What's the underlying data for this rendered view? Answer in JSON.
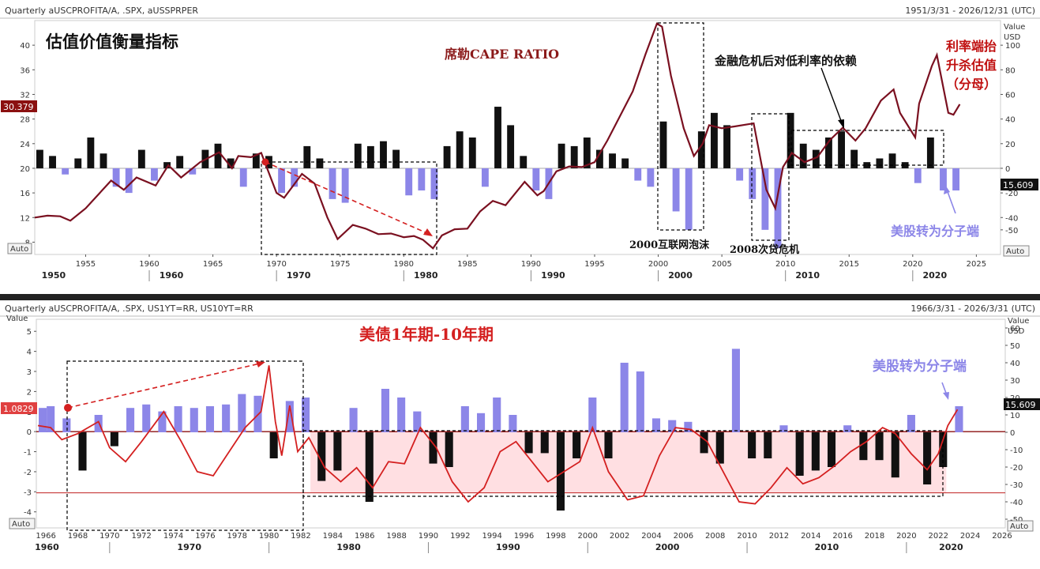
{
  "top_panel": {
    "header_left": "Quarterly aUSCPROFITA/A, .SPX, aUSSPRPER",
    "header_right": "1951/3/31 - 2026/12/31 (UTC)",
    "title": "估值价值衡量指标",
    "cape_label": "席勒CAPE RATIO",
    "annotation_crisis": "金融危机后对低利率的依赖",
    "annotation_rate1": "利率端抬",
    "annotation_rate2": "升杀估值",
    "annotation_rate3": "（分母）",
    "annotation_dotcom": "2000互联网泡沫",
    "annotation_subprime": "2008次贷危机",
    "annotation_numer": "美股转为分子端",
    "right_axis_label1": "Value",
    "right_axis_label2": "USD",
    "value_tag_left": "30.379",
    "value_tag_right": "15.609",
    "auto_left": "Auto",
    "auto_right": "Auto"
  },
  "bottom_panel": {
    "header_left": "Quarterly aUSCPROFITA/A, .SPX, US1YT=RR, US10YT=RR",
    "header_right": "1966/3/31 - 2026/3/31 (UTC)",
    "title": "美债1年期-10年期",
    "annotation_numer": "美股转为分子端",
    "left_axis_label": "Value",
    "right_axis_label1": "Value",
    "right_axis_label2": "USD",
    "value_tag_left": "1.0829",
    "value_tag_right": "15.609",
    "auto_left": "Auto",
    "auto_right": "Auto"
  },
  "colors": {
    "cape_line": "#7a1020",
    "spread_line": "#d42020",
    "positive_bar_top": "#111111",
    "negative_bar_top": "#8c86e8",
    "positive_bar_bottom": "#8c86e8",
    "negative_bar_bottom": "#111111",
    "pink_fill": "#ffdfe2",
    "annotation_red": "#c01010",
    "annotation_purple": "#8c86e8"
  },
  "chart_data": [
    {
      "type": "line",
      "name": "top",
      "title": "估值价值衡量指标",
      "x_range": [
        1951,
        2026.9
      ],
      "left_ylim": [
        6,
        44
      ],
      "left_ticks": [
        8,
        12,
        16,
        20,
        24,
        28,
        32,
        36,
        40
      ],
      "right_ylim": [
        -70,
        120
      ],
      "right_ticks": [
        -50,
        -40,
        -20,
        0,
        20,
        40,
        60,
        80,
        100
      ],
      "x_ticks": [
        1955,
        1960,
        1965,
        1970,
        1975,
        1980,
        1985,
        1990,
        1995,
        2000,
        2005,
        2010,
        2015,
        2020,
        2025
      ],
      "decades": [
        1950,
        1960,
        1970,
        1980,
        1990,
        2000,
        2010,
        2020
      ],
      "cape_series": {
        "x": [
          1951,
          1952,
          1953,
          1953.8,
          1955,
          1957,
          1958,
          1959,
          1960.5,
          1961.5,
          1962.5,
          1964,
          1965.5,
          1966.5,
          1967,
          1968,
          1968.8,
          1970,
          1970.6,
          1972,
          1973,
          1974,
          1974.8,
          1976,
          1977,
          1978,
          1979,
          1980,
          1980.8,
          1981.5,
          1982.3,
          1983,
          1984,
          1985,
          1986,
          1987,
          1988,
          1989.5,
          1990.5,
          1991,
          1992,
          1993,
          1994,
          1995,
          1996,
          1997,
          1998,
          1999,
          1999.9,
          2000.3,
          2001,
          2002,
          2002.8,
          2003.5,
          2004,
          2005,
          2006,
          2007.5,
          2008.5,
          2009.2,
          2009.8,
          2010.5,
          2011.5,
          2012.5,
          2013.5,
          2014.5,
          2015.5,
          2016.3,
          2017.5,
          2018.5,
          2019,
          2020.2,
          2020.5,
          2021.5,
          2021.9,
          2022.8,
          2023.2,
          2023.7
        ],
        "y": [
          12,
          12.3,
          12.2,
          11.5,
          13.5,
          18,
          16.5,
          18.5,
          17.2,
          20.5,
          18.5,
          21,
          22.6,
          20,
          22,
          21.8,
          22.5,
          16,
          15.2,
          19.1,
          17.5,
          12,
          8.5,
          10.8,
          10.2,
          9.3,
          9.4,
          8.8,
          9,
          8.4,
          7.0,
          9.1,
          10.1,
          10.2,
          13,
          14.7,
          14,
          17.8,
          15.6,
          16.3,
          19.5,
          20.3,
          20.2,
          21,
          24.5,
          28.5,
          32.5,
          38.5,
          43.5,
          43,
          35,
          26.5,
          22,
          24,
          27,
          26.5,
          26.8,
          27.3,
          16.5,
          13.5,
          20.2,
          22.5,
          21,
          21.8,
          24.6,
          26.6,
          24.5,
          26.5,
          31,
          32.8,
          29,
          25,
          30.5,
          36.6,
          38.4,
          29,
          28.7,
          30.4
        ]
      },
      "profit_bars": {
        "x": [
          1951,
          1952,
          1953,
          1954,
          1955,
          1956,
          1957,
          1958,
          1959,
          1960,
          1961,
          1962,
          1963,
          1964,
          1965,
          1966,
          1967,
          1968,
          1969,
          1970,
          1971,
          1972,
          1973,
          1974,
          1975,
          1976,
          1977,
          1978,
          1979,
          1980,
          1981,
          1982,
          1983,
          1984,
          1985,
          1986,
          1987,
          1988,
          1989,
          1990,
          1991,
          1992,
          1993,
          1994,
          1995,
          1996,
          1997,
          1998,
          1999,
          2000,
          2001,
          2002,
          2003,
          2004,
          2005,
          2006,
          2007,
          2008,
          2009,
          2010,
          2011,
          2012,
          2013,
          2014,
          2015,
          2016,
          2017,
          2018,
          2019,
          2020,
          2021,
          2022,
          2023
        ],
        "y": [
          15,
          10,
          -5,
          8,
          25,
          12,
          -15,
          -20,
          15,
          -10,
          5,
          10,
          -5,
          15,
          20,
          8,
          -15,
          12,
          10,
          -20,
          -15,
          18,
          8,
          -25,
          -28,
          20,
          18,
          22,
          15,
          -22,
          -18,
          -25,
          18,
          30,
          25,
          -15,
          50,
          35,
          10,
          -18,
          -25,
          20,
          18,
          25,
          15,
          12,
          8,
          -10,
          -15,
          38,
          -35,
          -50,
          30,
          45,
          35,
          -10,
          -25,
          -50,
          -65,
          45,
          20,
          15,
          25,
          30,
          15,
          5,
          8,
          12,
          5,
          -12,
          25,
          -18,
          -18
        ]
      }
    },
    {
      "type": "line",
      "name": "bottom",
      "title": "美债1年期-10年期",
      "x_range": [
        1965.4,
        2026.2
      ],
      "left_ylim": [
        -4.8,
        5.6
      ],
      "left_ticks": [
        -4,
        -3,
        -2,
        -1,
        0,
        1,
        2,
        3,
        4,
        5
      ],
      "right_ylim": [
        -55,
        65
      ],
      "right_ticks": [
        -50,
        -40,
        -30,
        -20,
        -10,
        0,
        10,
        20,
        30,
        40,
        50,
        60
      ],
      "x_ticks": [
        1966,
        1968,
        1970,
        1972,
        1974,
        1976,
        1978,
        1980,
        1982,
        1984,
        1986,
        1988,
        1990,
        1992,
        1994,
        1996,
        1998,
        2000,
        2002,
        2004,
        2006,
        2008,
        2010,
        2012,
        2014,
        2016,
        2018,
        2020,
        2022,
        2024,
        2026
      ],
      "decades": [
        1960,
        1970,
        1980,
        1990,
        2000,
        2010,
        2020
      ],
      "spread_series": {
        "x": [
          1965.5,
          1966.3,
          1967,
          1968,
          1969.3,
          1970,
          1971,
          1972,
          1973.4,
          1974.5,
          1975.5,
          1976.5,
          1977.5,
          1978.5,
          1979.5,
          1980,
          1980.4,
          1980.8,
          1981.3,
          1981.8,
          1982.5,
          1983.5,
          1984.5,
          1985.5,
          1986.5,
          1987.5,
          1988.5,
          1989.5,
          1990.5,
          1991.5,
          1992.5,
          1993.5,
          1994.5,
          1995.5,
          1996.5,
          1997.5,
          1998.5,
          1999.5,
          2000.3,
          2001.3,
          2002.5,
          2003.5,
          2004.5,
          2005.5,
          2006.5,
          2007.5,
          2008.5,
          2009.5,
          2010.5,
          2011.5,
          2012.5,
          2013.5,
          2014.5,
          2015.5,
          2016.5,
          2017.5,
          2018.5,
          2019.3,
          2020.3,
          2021.3,
          2022,
          2022.6,
          2023.2
        ],
        "y": [
          0.3,
          0.2,
          -0.4,
          -0.1,
          0.5,
          -0.8,
          -1.5,
          -0.5,
          1.0,
          -0.5,
          -2.0,
          -2.2,
          -1.0,
          0.2,
          1.0,
          3.3,
          0.5,
          -1.2,
          1.3,
          -1.0,
          -0.3,
          -1.8,
          -2.5,
          -1.8,
          -2.8,
          -1.5,
          -1.6,
          0.2,
          -0.8,
          -2.5,
          -3.5,
          -2.8,
          -1.0,
          -0.5,
          -1.5,
          -2.5,
          -2.0,
          -1.5,
          0.2,
          -2.0,
          -3.4,
          -3.2,
          -1.2,
          0.2,
          0.1,
          -0.5,
          -2.0,
          -3.5,
          -3.6,
          -2.8,
          -1.8,
          -2.6,
          -2.3,
          -1.7,
          -1.0,
          -0.5,
          0.2,
          -0.1,
          -1.1,
          -1.9,
          -1.1,
          0.3,
          1.1
        ]
      },
      "profit_bars": {
        "x": [
          1965.5,
          1966,
          1967,
          1968,
          1969,
          1970,
          1971,
          1972,
          1973,
          1974,
          1975,
          1976,
          1977,
          1978,
          1979,
          1980,
          1981,
          1982,
          1983,
          1984,
          1985,
          1986,
          1987,
          1988,
          1989,
          1990,
          1991,
          1992,
          1993,
          1994,
          1995,
          1996,
          1997,
          1998,
          1999,
          2000,
          2001,
          2002,
          2003,
          2004,
          2005,
          2006,
          2007,
          2008,
          2009,
          2010,
          2011,
          2012,
          2013,
          2014,
          2015,
          2016,
          2017,
          2018,
          2019,
          2020,
          2021,
          2022,
          2023
        ],
        "y": [
          14,
          15,
          8,
          -22,
          10,
          -8,
          14,
          16,
          12,
          15,
          14,
          15,
          16,
          22,
          21,
          -15,
          18,
          20,
          -28,
          -22,
          14,
          -40,
          25,
          20,
          12,
          -18,
          -20,
          15,
          11,
          20,
          10,
          -12,
          -12,
          -45,
          -15,
          20,
          -15,
          40,
          35,
          8,
          7,
          6,
          -12,
          -18,
          48,
          -15,
          -15,
          4,
          -25,
          -22,
          -20,
          4,
          -16,
          -16,
          -26,
          10,
          -30,
          -20,
          15
        ]
      }
    }
  ]
}
